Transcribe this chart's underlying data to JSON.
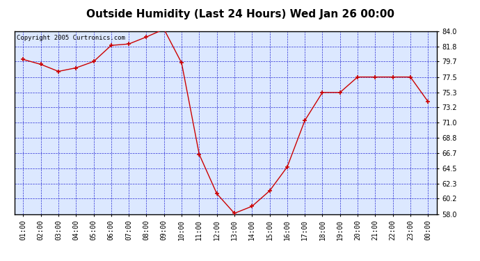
{
  "title": "Outside Humidity (Last 24 Hours) Wed Jan 26 00:00",
  "copyright": "Copyright 2005 Curtronics.com",
  "x_labels": [
    "01:00",
    "02:00",
    "03:00",
    "04:00",
    "05:00",
    "06:00",
    "07:00",
    "08:00",
    "09:00",
    "10:00",
    "11:00",
    "12:00",
    "13:00",
    "14:00",
    "15:00",
    "16:00",
    "17:00",
    "18:00",
    "19:00",
    "20:00",
    "21:00",
    "22:00",
    "23:00",
    "00:00"
  ],
  "x_values": [
    1,
    2,
    3,
    4,
    5,
    6,
    7,
    8,
    9,
    10,
    11,
    12,
    13,
    14,
    15,
    16,
    17,
    18,
    19,
    20,
    21,
    22,
    23,
    24
  ],
  "y_values": [
    80.0,
    79.3,
    78.3,
    78.8,
    79.7,
    82.0,
    82.2,
    83.2,
    84.3,
    79.5,
    66.5,
    60.9,
    58.1,
    59.1,
    61.3,
    64.7,
    71.3,
    75.3,
    75.3,
    77.5,
    77.5,
    77.5,
    77.5,
    74.0
  ],
  "ylim_min": 58.0,
  "ylim_max": 84.0,
  "yticks": [
    58.0,
    60.2,
    62.3,
    64.5,
    66.7,
    68.8,
    71.0,
    73.2,
    75.3,
    77.5,
    79.7,
    81.8,
    84.0
  ],
  "line_color": "#cc0000",
  "marker_color": "#cc0000",
  "bg_color": "#ffffff",
  "plot_bg_color": "#dce8ff",
  "grid_color": "#0000cc",
  "title_color": "#000000",
  "border_color": "#000000",
  "title_fontsize": 11,
  "tick_fontsize": 7,
  "copyright_fontsize": 6.5
}
